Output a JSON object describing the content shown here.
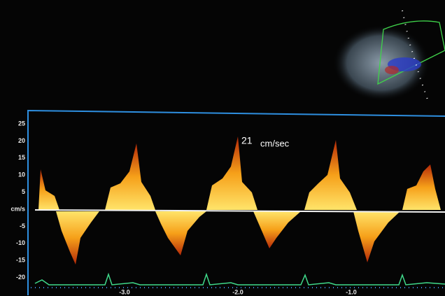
{
  "doppler": {
    "y_axis_labels": [
      "25",
      "20",
      "15",
      "10",
      "5",
      "cm/s",
      "-5",
      "-10",
      "-15",
      "-20"
    ],
    "x_axis_labels": [
      "-3.0",
      "-2.0",
      "-1.0"
    ],
    "annotation": {
      "value": "21",
      "unit": "cm/sec"
    }
  }
}
